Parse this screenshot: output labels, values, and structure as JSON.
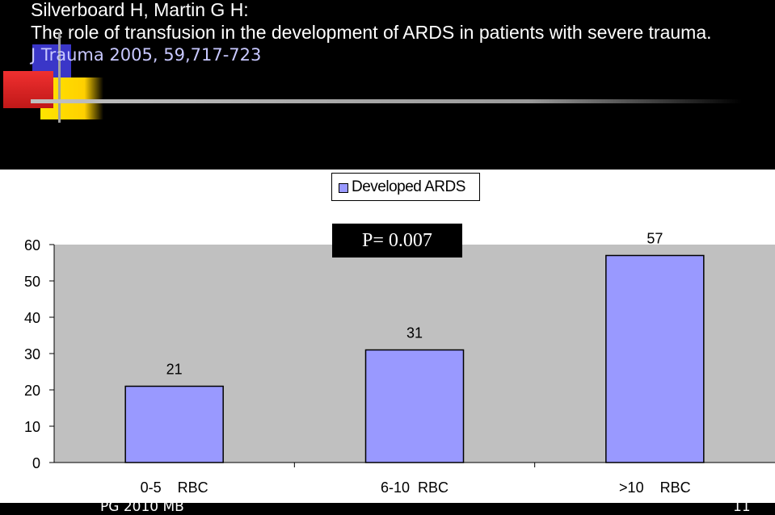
{
  "header": {
    "line1": "Silverboard  H, Martin G H:",
    "line2": "The role of transfusion in the development of ARDS in patients with severe trauma.",
    "line3": "J Trauma 2005, 59,717-723"
  },
  "p_value": "P= 0.007",
  "footer": {
    "left": "PG 2010 MB",
    "right": "11"
  },
  "colors": {
    "bar": "#9999ff",
    "plot_bg": "#c0c0c0",
    "accent_text": "#c8c8ff"
  },
  "chart_data": {
    "type": "bar",
    "categories": [
      "0-5    RBC",
      "6-10  RBC",
      ">10    RBC"
    ],
    "series": [
      {
        "name": "Developed ARDS",
        "values": [
          21,
          31,
          57
        ]
      }
    ],
    "data_labels": [
      "21",
      "31",
      "57"
    ],
    "yticks": [
      "0",
      "10",
      "20",
      "30",
      "40",
      "50",
      "60"
    ],
    "ylim": [
      0,
      60
    ],
    "legend": "top-center",
    "grid": false
  }
}
